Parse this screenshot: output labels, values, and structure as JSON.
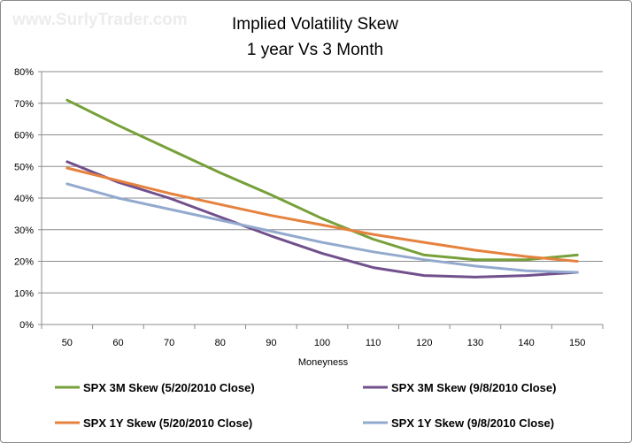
{
  "watermark": "www.SurlyTrader.com",
  "chart_data": {
    "type": "line",
    "title_lines": [
      "Implied Volatility Skew",
      "1 year Vs 3 Month"
    ],
    "xlabel": "Moneyness",
    "ylabel": "",
    "x": [
      50,
      60,
      70,
      80,
      90,
      100,
      110,
      120,
      130,
      140,
      150
    ],
    "y_ticks": [
      "0%",
      "10%",
      "20%",
      "30%",
      "40%",
      "50%",
      "60%",
      "70%",
      "80%"
    ],
    "ylim": [
      0,
      0.8
    ],
    "grid": "horizontal",
    "legend_position": "bottom",
    "series": [
      {
        "name": "SPX 3M Skew (5/20/2010 Close)",
        "color": "#77A03A",
        "values": [
          0.71,
          0.63,
          0.555,
          0.48,
          0.41,
          0.335,
          0.27,
          0.22,
          0.205,
          0.205,
          0.22
        ]
      },
      {
        "name": "SPX 3M Skew (9/8/2010 Close)",
        "color": "#71508C",
        "values": [
          0.515,
          0.45,
          0.4,
          0.34,
          0.28,
          0.225,
          0.18,
          0.155,
          0.15,
          0.155,
          0.165
        ]
      },
      {
        "name": "SPX 1Y Skew (5/20/2010 Close)",
        "color": "#E5823E",
        "values": [
          0.495,
          0.455,
          0.415,
          0.38,
          0.345,
          0.315,
          0.285,
          0.26,
          0.235,
          0.215,
          0.2
        ]
      },
      {
        "name": "SPX 1Y Skew (9/8/2010 Close)",
        "color": "#93AACE",
        "values": [
          0.445,
          0.4,
          0.365,
          0.33,
          0.295,
          0.26,
          0.23,
          0.205,
          0.185,
          0.17,
          0.165
        ]
      }
    ]
  }
}
